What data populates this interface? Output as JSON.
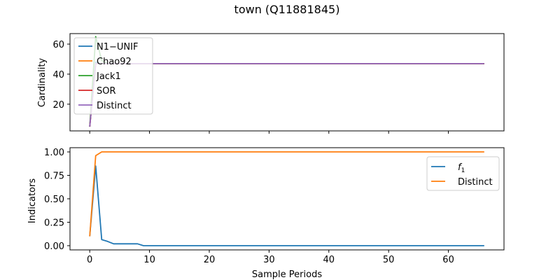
{
  "figure": {
    "title": "town (Q11881845)"
  },
  "chart_data": [
    {
      "type": "line",
      "title": "",
      "xlabel": "",
      "ylabel": "Cardinality",
      "xlim": [
        -3.3,
        69.3
      ],
      "ylim": [
        2.2,
        67
      ],
      "xticks": [
        0,
        10,
        20,
        30,
        40,
        50,
        60
      ],
      "xtick_labels_visible": false,
      "yticks": [
        20,
        40,
        60
      ],
      "ytick_labels": [
        "20",
        "40",
        "60"
      ],
      "grid": false,
      "legend_position": "upper left",
      "series": [
        {
          "name": "N1−UNIF",
          "color": "#1f77b4",
          "x": [
            0,
            1,
            2,
            3,
            66
          ],
          "y": [
            5,
            48,
            47,
            47,
            47
          ]
        },
        {
          "name": "Chao92",
          "color": "#ff7f0e",
          "x": [
            0,
            1,
            2,
            3,
            66
          ],
          "y": [
            5,
            47,
            47,
            47,
            47
          ]
        },
        {
          "name": "Jack1",
          "color": "#2ca02c",
          "x": [
            0,
            1,
            2,
            3,
            66
          ],
          "y": [
            5,
            65,
            49,
            47,
            47
          ]
        },
        {
          "name": "SOR",
          "color": "#d62728",
          "x": [
            0,
            1,
            2,
            3,
            66
          ],
          "y": [
            5,
            47,
            47,
            47,
            47
          ]
        },
        {
          "name": "Distinct",
          "color": "#9467bd",
          "x": [
            0,
            1,
            2,
            3,
            66
          ],
          "y": [
            5,
            47,
            47,
            47,
            47
          ]
        }
      ]
    },
    {
      "type": "line",
      "title": "",
      "xlabel": "Sample Periods",
      "ylabel": "Indicators",
      "xlim": [
        -3.3,
        69.3
      ],
      "ylim": [
        -0.045,
        1.045
      ],
      "xticks": [
        0,
        10,
        20,
        30,
        40,
        50,
        60
      ],
      "xtick_labels": [
        "0",
        "10",
        "20",
        "30",
        "40",
        "50",
        "60"
      ],
      "yticks": [
        0.0,
        0.25,
        0.5,
        0.75,
        1.0
      ],
      "ytick_labels": [
        "0.00",
        "0.25",
        "0.50",
        "0.75",
        "1.00"
      ],
      "grid": false,
      "legend_position": "upper right",
      "series": [
        {
          "name": "f1",
          "name_main": "f",
          "name_sub": "1",
          "color": "#1f77b4",
          "x": [
            0,
            1,
            2,
            3,
            4,
            5,
            6,
            7,
            8,
            9,
            66
          ],
          "y": [
            0.1,
            0.85,
            0.065,
            0.045,
            0.02,
            0.02,
            0.02,
            0.02,
            0.02,
            0.0,
            0.0
          ]
        },
        {
          "name": "Distinct",
          "color": "#ff7f0e",
          "x": [
            0,
            1,
            2,
            3,
            66
          ],
          "y": [
            0.1,
            0.96,
            1.0,
            1.0,
            1.0
          ]
        }
      ]
    }
  ]
}
